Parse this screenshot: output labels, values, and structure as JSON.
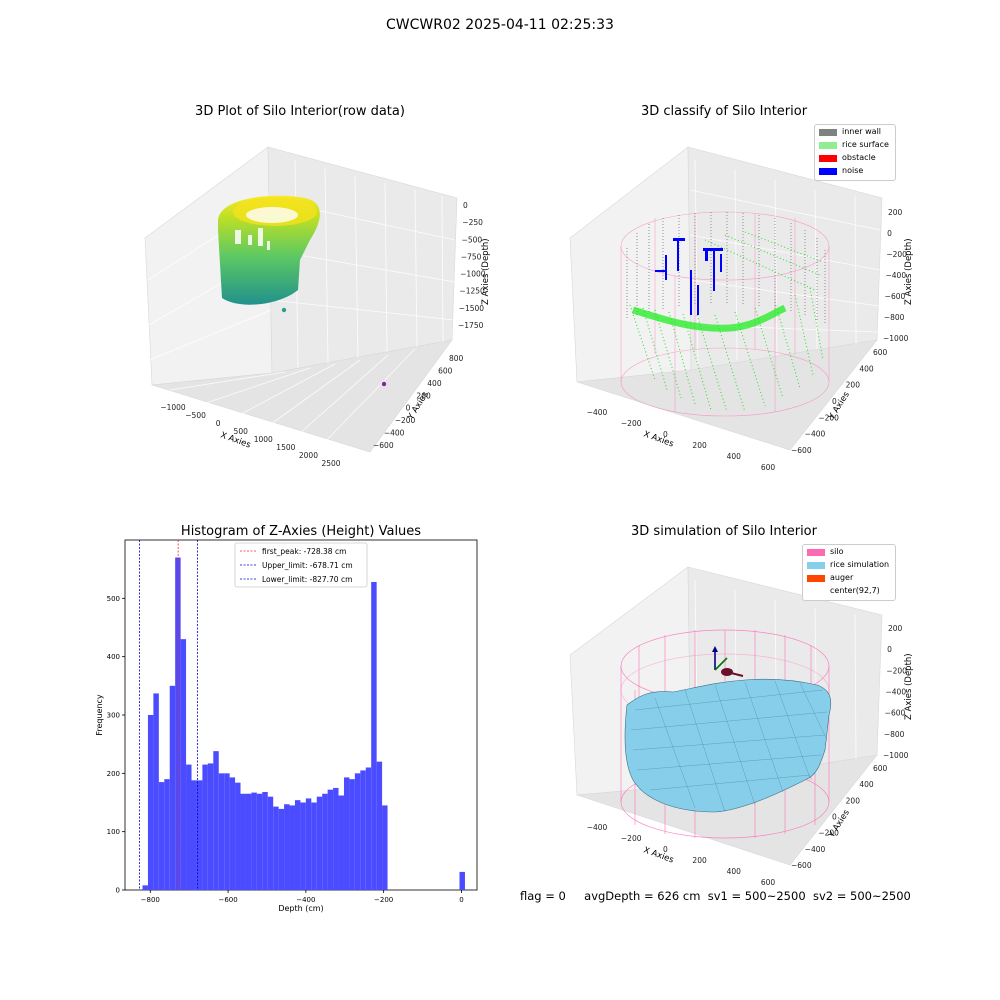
{
  "figure": {
    "suptitle": "CWCWR02 2025-04-11 02:25:33",
    "footer": {
      "flag": "flag = 0",
      "avg_depth": "avgDepth = 626 cm",
      "sv1": "sv1 = 500~2500",
      "sv2": "sv2 = 500~2500"
    }
  },
  "colors": {
    "hist_bar": "#4b4bff",
    "first_peak": "#e8282a",
    "limit_line": "#0000cc",
    "inner_wall": "#808080",
    "rice_surface": "#90ee90",
    "obstacle": "#ff0000",
    "noise": "#0000ff",
    "silo": "#ff69b4",
    "rice_simulation": "#87ceeb",
    "auger": "#ff4500"
  },
  "chart_data": [
    {
      "type": "scatter",
      "subtype": "3d",
      "title": "3D Plot of Silo Interior(row data)",
      "xlabel": "X Axies",
      "ylabel": "Y Axies",
      "zlabel": "Z Axies (Depth)",
      "x_ticks": [
        "−1000",
        "−500",
        "0",
        "500",
        "1000",
        "1500",
        "2000",
        "2500"
      ],
      "y_ticks": [
        "−600",
        "−400",
        "−200",
        "0",
        "200",
        "400",
        "600",
        "800"
      ],
      "z_ticks": [
        "0",
        "−250",
        "−500",
        "−750",
        "−1000",
        "−1250",
        "−1500",
        "−1750"
      ],
      "xlim": [
        -1200,
        2600
      ],
      "ylim": [
        -700,
        900
      ],
      "zlim": [
        -1900,
        100
      ],
      "colormap": "viridis"
    },
    {
      "type": "scatter",
      "subtype": "3d",
      "title": "3D classify of Silo Interior",
      "xlabel": "X Axies",
      "ylabel": "Y Axies",
      "zlabel": "Z Axies (Depth)",
      "x_ticks": [
        "−400",
        "−200",
        "0",
        "200",
        "400",
        "600"
      ],
      "y_ticks": [
        "−600",
        "−400",
        "−200",
        "0",
        "200",
        "400",
        "600"
      ],
      "z_ticks": [
        "200",
        "0",
        "−200",
        "−400",
        "−600",
        "−800",
        "−1000"
      ],
      "legend": [
        "inner wall",
        "rice surface",
        "obstacle",
        "noise"
      ],
      "legend_position": "top-right"
    },
    {
      "type": "bar",
      "subtype": "histogram",
      "title": "Histogram of Z-Axies (Height) Values",
      "xlabel": "Depth (cm)",
      "ylabel": "Frequency",
      "x_ticks": [
        -800,
        -600,
        -400,
        -200,
        0
      ],
      "y_ticks": [
        0,
        100,
        200,
        300,
        400,
        500
      ],
      "xlim": [
        -865,
        40
      ],
      "ylim": [
        0,
        600
      ],
      "bin_start": -820,
      "bin_width": 14,
      "values": [
        8,
        300,
        337,
        185,
        190,
        350,
        570,
        430,
        215,
        188,
        188,
        215,
        217,
        238,
        200,
        200,
        193,
        184,
        165,
        165,
        167,
        165,
        168,
        160,
        143,
        139,
        147,
        145,
        154,
        150,
        157,
        150,
        160,
        165,
        172,
        175,
        162,
        193,
        190,
        200,
        205,
        210,
        528,
        220,
        145
      ],
      "extra_bars": [
        {
          "x": -5,
          "width": 14,
          "value": 31
        }
      ],
      "vlines": [
        {
          "label": "first_peak: -728.38 cm",
          "x": -728.38,
          "style": "first_peak"
        },
        {
          "label": "Upper_limit: -678.71 cm",
          "x": -678.71,
          "style": "limit"
        },
        {
          "label": "Lower_limit: -827.70 cm",
          "x": -827.7,
          "style": "limit"
        }
      ],
      "legend_position": "top-center"
    },
    {
      "type": "surface",
      "subtype": "3d",
      "title": "3D simulation of Silo Interior",
      "xlabel": "X Axies",
      "ylabel": "Y Axies",
      "zlabel": "Z Axies (Depth)",
      "x_ticks": [
        "−400",
        "−200",
        "0",
        "200",
        "400",
        "600"
      ],
      "y_ticks": [
        "−600",
        "−400",
        "−200",
        "0",
        "200",
        "400",
        "600"
      ],
      "z_ticks": [
        "200",
        "0",
        "−200",
        "−400",
        "−600",
        "−800",
        "−1000"
      ],
      "legend": [
        "silo",
        "rice simulation",
        "auger",
        "center(92,7)"
      ],
      "legend_position": "top-right"
    }
  ]
}
